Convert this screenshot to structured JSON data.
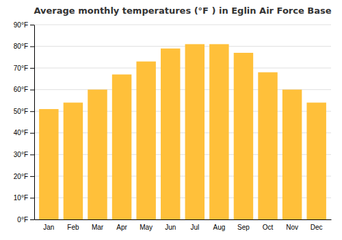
{
  "chart_data": {
    "type": "bar",
    "title": "Average monthly temperatures (°F ) in Eglin Air Force Base",
    "categories": [
      "Jan",
      "Feb",
      "Mar",
      "Apr",
      "May",
      "Jun",
      "Jul",
      "Aug",
      "Sep",
      "Oct",
      "Nov",
      "Dec"
    ],
    "values": [
      51,
      54,
      60,
      67,
      73,
      79,
      81,
      81,
      77,
      68,
      60,
      54
    ],
    "color": "#FFC03A",
    "ylim": [
      0,
      90
    ],
    "yticks": [
      {
        "value": 0,
        "label": "0°F"
      },
      {
        "value": 10,
        "label": "10°F"
      },
      {
        "value": 20,
        "label": "20°F"
      },
      {
        "value": 30,
        "label": "30°F"
      },
      {
        "value": 40,
        "label": "40°F"
      },
      {
        "value": 50,
        "label": "50°F"
      },
      {
        "value": 60,
        "label": "60°F"
      },
      {
        "value": 70,
        "label": "70°F"
      },
      {
        "value": 80,
        "label": "80°F"
      },
      {
        "value": 90,
        "label": "90°F"
      }
    ],
    "grid": true
  }
}
